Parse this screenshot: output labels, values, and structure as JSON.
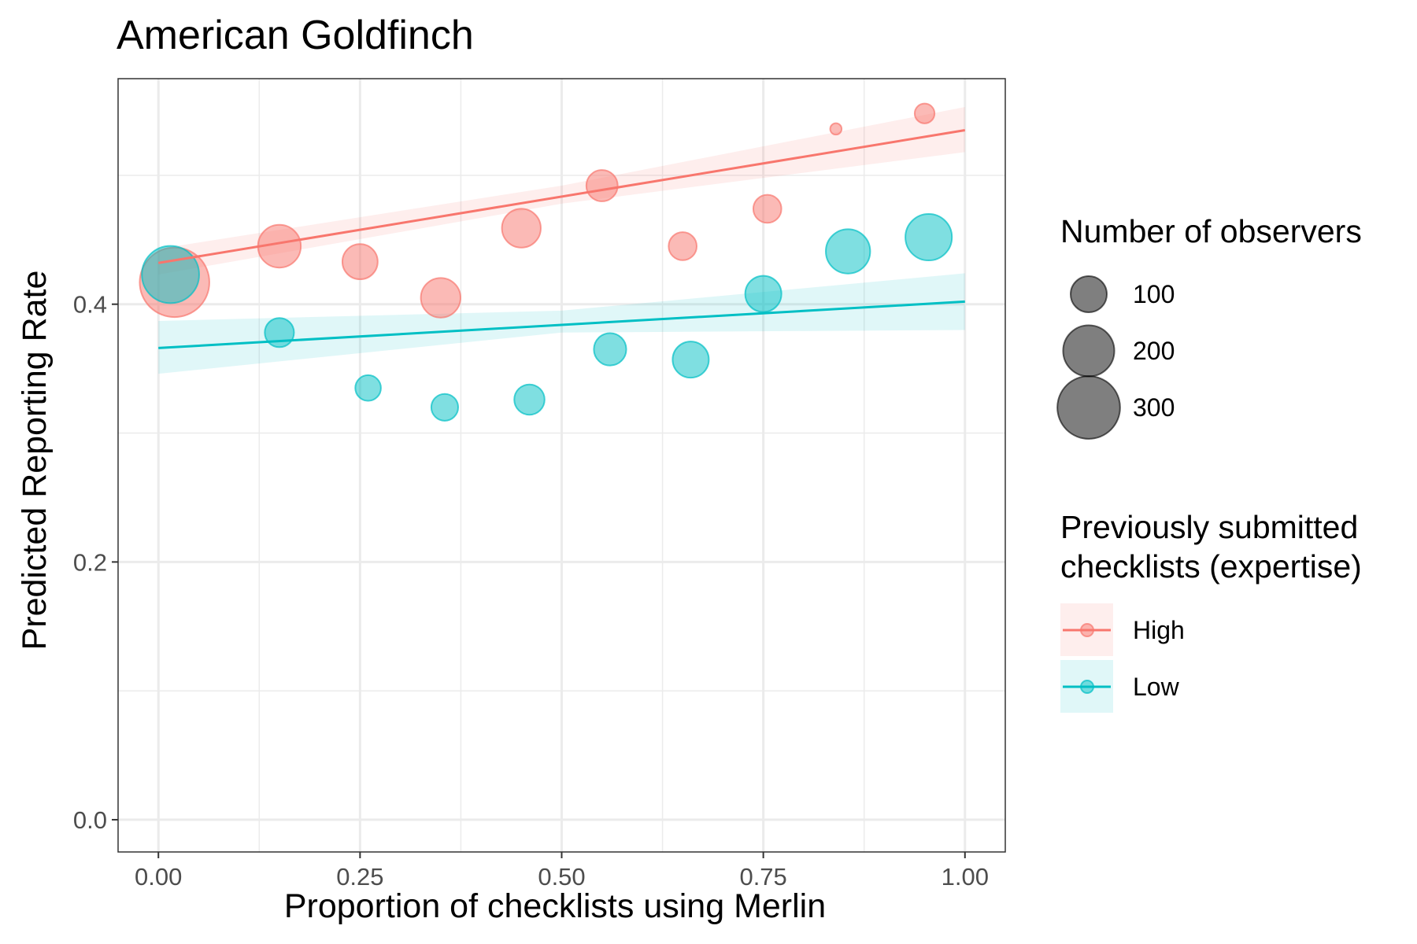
{
  "chart_data": {
    "type": "scatter",
    "title": "American Goldfinch",
    "xlabel": "Proportion of checklists using Merlin",
    "ylabel": "Predicted Reporting Rate",
    "xlim": [
      -0.05,
      1.05
    ],
    "ylim": [
      -0.025,
      0.575
    ],
    "x_ticks": [
      0.0,
      0.25,
      0.5,
      0.75,
      1.0
    ],
    "x_tick_labels": [
      "0.00",
      "0.25",
      "0.50",
      "0.75",
      "1.00"
    ],
    "y_ticks": [
      0.0,
      0.2,
      0.4
    ],
    "y_tick_labels": [
      "0.0",
      "0.2",
      "0.4"
    ],
    "grid": true,
    "series": [
      {
        "name": "High",
        "color": "#F8766D",
        "points": [
          {
            "x": 0.02,
            "y": 0.417,
            "observers": 370
          },
          {
            "x": 0.15,
            "y": 0.445,
            "observers": 140
          },
          {
            "x": 0.25,
            "y": 0.433,
            "observers": 95
          },
          {
            "x": 0.35,
            "y": 0.405,
            "observers": 120
          },
          {
            "x": 0.45,
            "y": 0.459,
            "observers": 115
          },
          {
            "x": 0.55,
            "y": 0.492,
            "observers": 75
          },
          {
            "x": 0.65,
            "y": 0.445,
            "observers": 60
          },
          {
            "x": 0.755,
            "y": 0.474,
            "observers": 60
          },
          {
            "x": 0.84,
            "y": 0.536,
            "observers": 10
          },
          {
            "x": 0.95,
            "y": 0.548,
            "observers": 30
          }
        ],
        "fit": {
          "x": [
            0.0,
            1.0
          ],
          "y": [
            0.432,
            0.535
          ]
        },
        "ci": {
          "x": [
            0.0,
            0.5,
            1.0
          ],
          "lower": [
            0.423,
            0.478,
            0.518
          ],
          "upper": [
            0.443,
            0.492,
            0.553
          ]
        }
      },
      {
        "name": "Low",
        "color": "#00BFC4",
        "points": [
          {
            "x": 0.015,
            "y": 0.423,
            "observers": 250
          },
          {
            "x": 0.15,
            "y": 0.378,
            "observers": 65
          },
          {
            "x": 0.26,
            "y": 0.335,
            "observers": 50
          },
          {
            "x": 0.355,
            "y": 0.32,
            "observers": 55
          },
          {
            "x": 0.46,
            "y": 0.326,
            "observers": 70
          },
          {
            "x": 0.56,
            "y": 0.365,
            "observers": 80
          },
          {
            "x": 0.66,
            "y": 0.357,
            "observers": 100
          },
          {
            "x": 0.75,
            "y": 0.408,
            "observers": 100
          },
          {
            "x": 0.855,
            "y": 0.441,
            "observers": 150
          },
          {
            "x": 0.955,
            "y": 0.452,
            "observers": 165
          }
        ],
        "fit": {
          "x": [
            0.0,
            1.0
          ],
          "y": [
            0.366,
            0.402
          ]
        },
        "ci": {
          "x": [
            0.0,
            0.5,
            1.0
          ],
          "lower": [
            0.346,
            0.378,
            0.38
          ],
          "upper": [
            0.387,
            0.395,
            0.424
          ]
        }
      }
    ],
    "size_legend": {
      "title": "Number of observers",
      "values": [
        100,
        200,
        300
      ],
      "labels": [
        "100",
        "200",
        "300"
      ]
    },
    "color_legend": {
      "title_lines": [
        "Previously submitted",
        "checklists (expertise)"
      ],
      "entries": [
        "High",
        "Low"
      ]
    }
  }
}
